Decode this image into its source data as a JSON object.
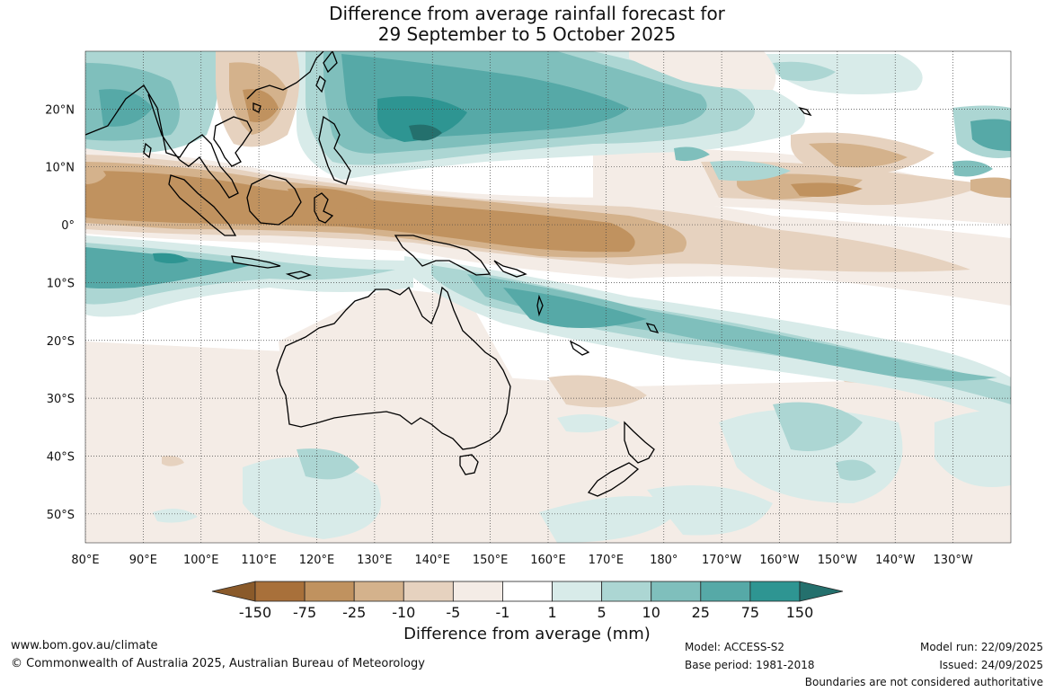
{
  "title_line1": "Difference from average rainfall forecast for",
  "title_line2": "29 September to 5 October 2025",
  "map": {
    "region": "Indo-Pacific and Australia",
    "lon_range": [
      80,
      240
    ],
    "lat_range": [
      -55,
      30
    ],
    "lat_ticks": [
      {
        "lat": 20,
        "label": "20°N"
      },
      {
        "lat": 10,
        "label": "10°N"
      },
      {
        "lat": 0,
        "label": "0°"
      },
      {
        "lat": -10,
        "label": "10°S"
      },
      {
        "lat": -20,
        "label": "20°S"
      },
      {
        "lat": -30,
        "label": "30°S"
      },
      {
        "lat": -40,
        "label": "40°S"
      },
      {
        "lat": -50,
        "label": "50°S"
      }
    ],
    "lon_ticks": [
      {
        "lon": 80,
        "label": "80°E"
      },
      {
        "lon": 90,
        "label": "90°E"
      },
      {
        "lon": 100,
        "label": "100°E"
      },
      {
        "lon": 110,
        "label": "110°E"
      },
      {
        "lon": 120,
        "label": "120°E"
      },
      {
        "lon": 130,
        "label": "130°E"
      },
      {
        "lon": 140,
        "label": "140°E"
      },
      {
        "lon": 150,
        "label": "150°E"
      },
      {
        "lon": 160,
        "label": "160°E"
      },
      {
        "lon": 170,
        "label": "170°E"
      },
      {
        "lon": 180,
        "label": "180°"
      },
      {
        "lon": 190,
        "label": "170°W"
      },
      {
        "lon": 200,
        "label": "160°W"
      },
      {
        "lon": 210,
        "label": "150°W"
      },
      {
        "lon": 220,
        "label": "140°W"
      },
      {
        "lon": 230,
        "label": "130°W"
      }
    ]
  },
  "legend": {
    "title": "Difference from average (mm)",
    "labels": [
      "-150",
      "-75",
      "-25",
      "-10",
      "-5",
      "-1",
      "1",
      "5",
      "10",
      "25",
      "75",
      "150"
    ],
    "colors": [
      "#a8703a",
      "#c0925f",
      "#d4b28c",
      "#e6d2bf",
      "#f4ece6",
      "#ffffff",
      "#d8ebe9",
      "#acd6d3",
      "#7fbfbc",
      "#56a9a7",
      "#2e9592"
    ],
    "extend_low_color": "#8a5a2a",
    "extend_high_color": "#24706d"
  },
  "footer": {
    "website": "www.bom.gov.au/climate",
    "copyright": "© Commonwealth of Australia 2025, Australian Bureau of Meteorology",
    "model": "Model: ACCESS-S2",
    "base_period": "Base period: 1981-2018",
    "model_run": "Model run: 22/09/2025",
    "issued": "Issued: 24/09/2025",
    "disclaimer": "Boundaries are not considered authoritative"
  }
}
